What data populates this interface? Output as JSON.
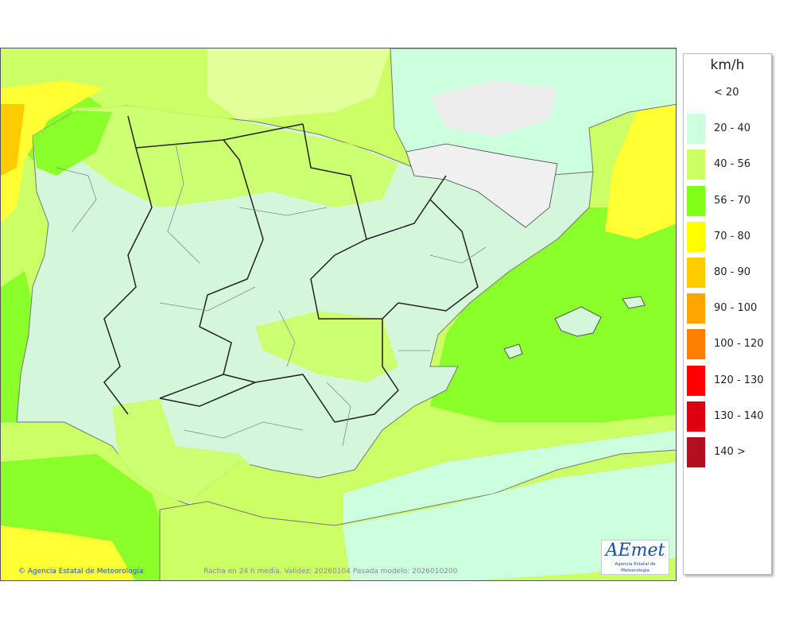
{
  "legend": {
    "unit": "km/h",
    "items": [
      {
        "label": "< 20",
        "color": ""
      },
      {
        "label": "20 - 40",
        "color": "#ccffdd"
      },
      {
        "label": "40 - 56",
        "color": "#ccff66"
      },
      {
        "label": "56 - 70",
        "color": "#80ff1a"
      },
      {
        "label": "70 - 80",
        "color": "#ffff00"
      },
      {
        "label": "80 - 90",
        "color": "#ffcc00"
      },
      {
        "label": "90 - 100",
        "color": "#ffa500"
      },
      {
        "label": "100 - 120",
        "color": "#ff8000"
      },
      {
        "label": "120 - 130",
        "color": "#ff0000"
      },
      {
        "label": "130 - 140",
        "color": "#dd0010"
      },
      {
        "label": "140 >",
        "color": "#b01020"
      }
    ]
  },
  "footer": {
    "credit": "Agencia Estatal de Meteorología",
    "info": "Racha en 24 h media. Validez: 20260104 Pasada modelo: 2026010200"
  },
  "logo": {
    "mark": "AEmet",
    "subtitle": "Agencia Estatal de Meteorología"
  }
}
